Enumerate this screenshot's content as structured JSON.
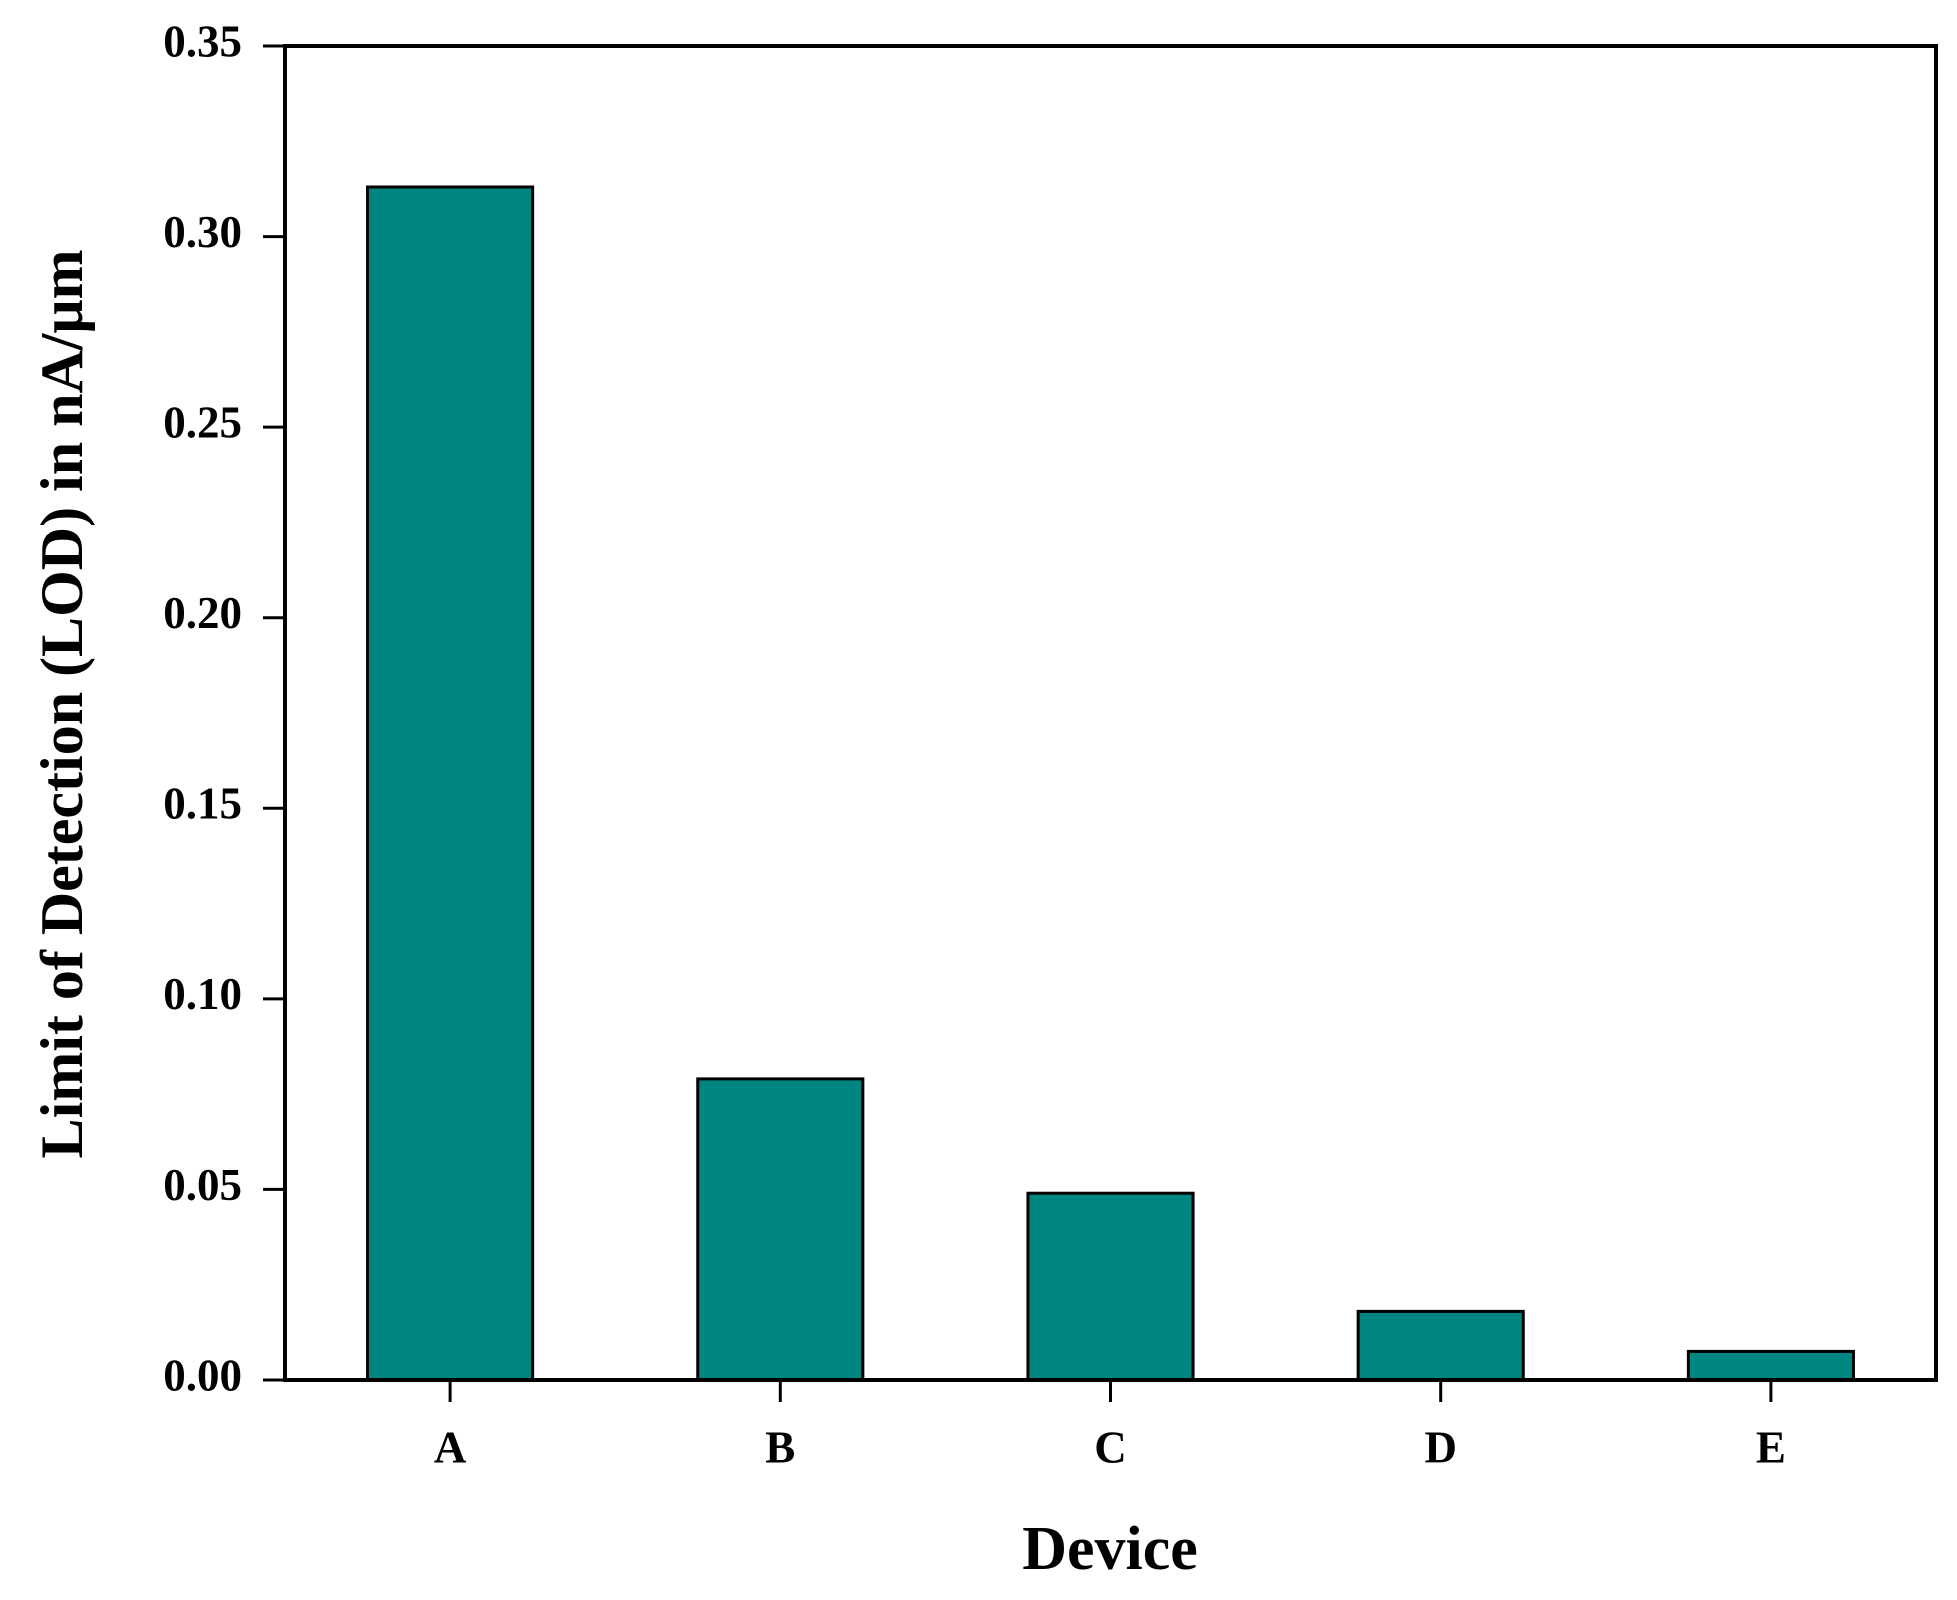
{
  "chart_data": {
    "type": "bar",
    "x_label": "Device",
    "y_label": "Limit of Detection (LOD) in nA/μm",
    "categories": [
      "A",
      "B",
      "C",
      "D",
      "E"
    ],
    "values": [
      0.313,
      0.079,
      0.049,
      0.018,
      0.0075
    ],
    "color": "#008682",
    "ylim": [
      0,
      0.35
    ],
    "yticks": [
      {
        "value": 0,
        "label": "0.00"
      },
      0.05,
      {
        "value": 0.1,
        "label": "0.10"
      },
      0.15,
      {
        "value": 0.2,
        "label": "0.20"
      },
      0.25,
      {
        "value": 0.3,
        "label": "0.30"
      },
      0.35
    ],
    "grid": false
  }
}
